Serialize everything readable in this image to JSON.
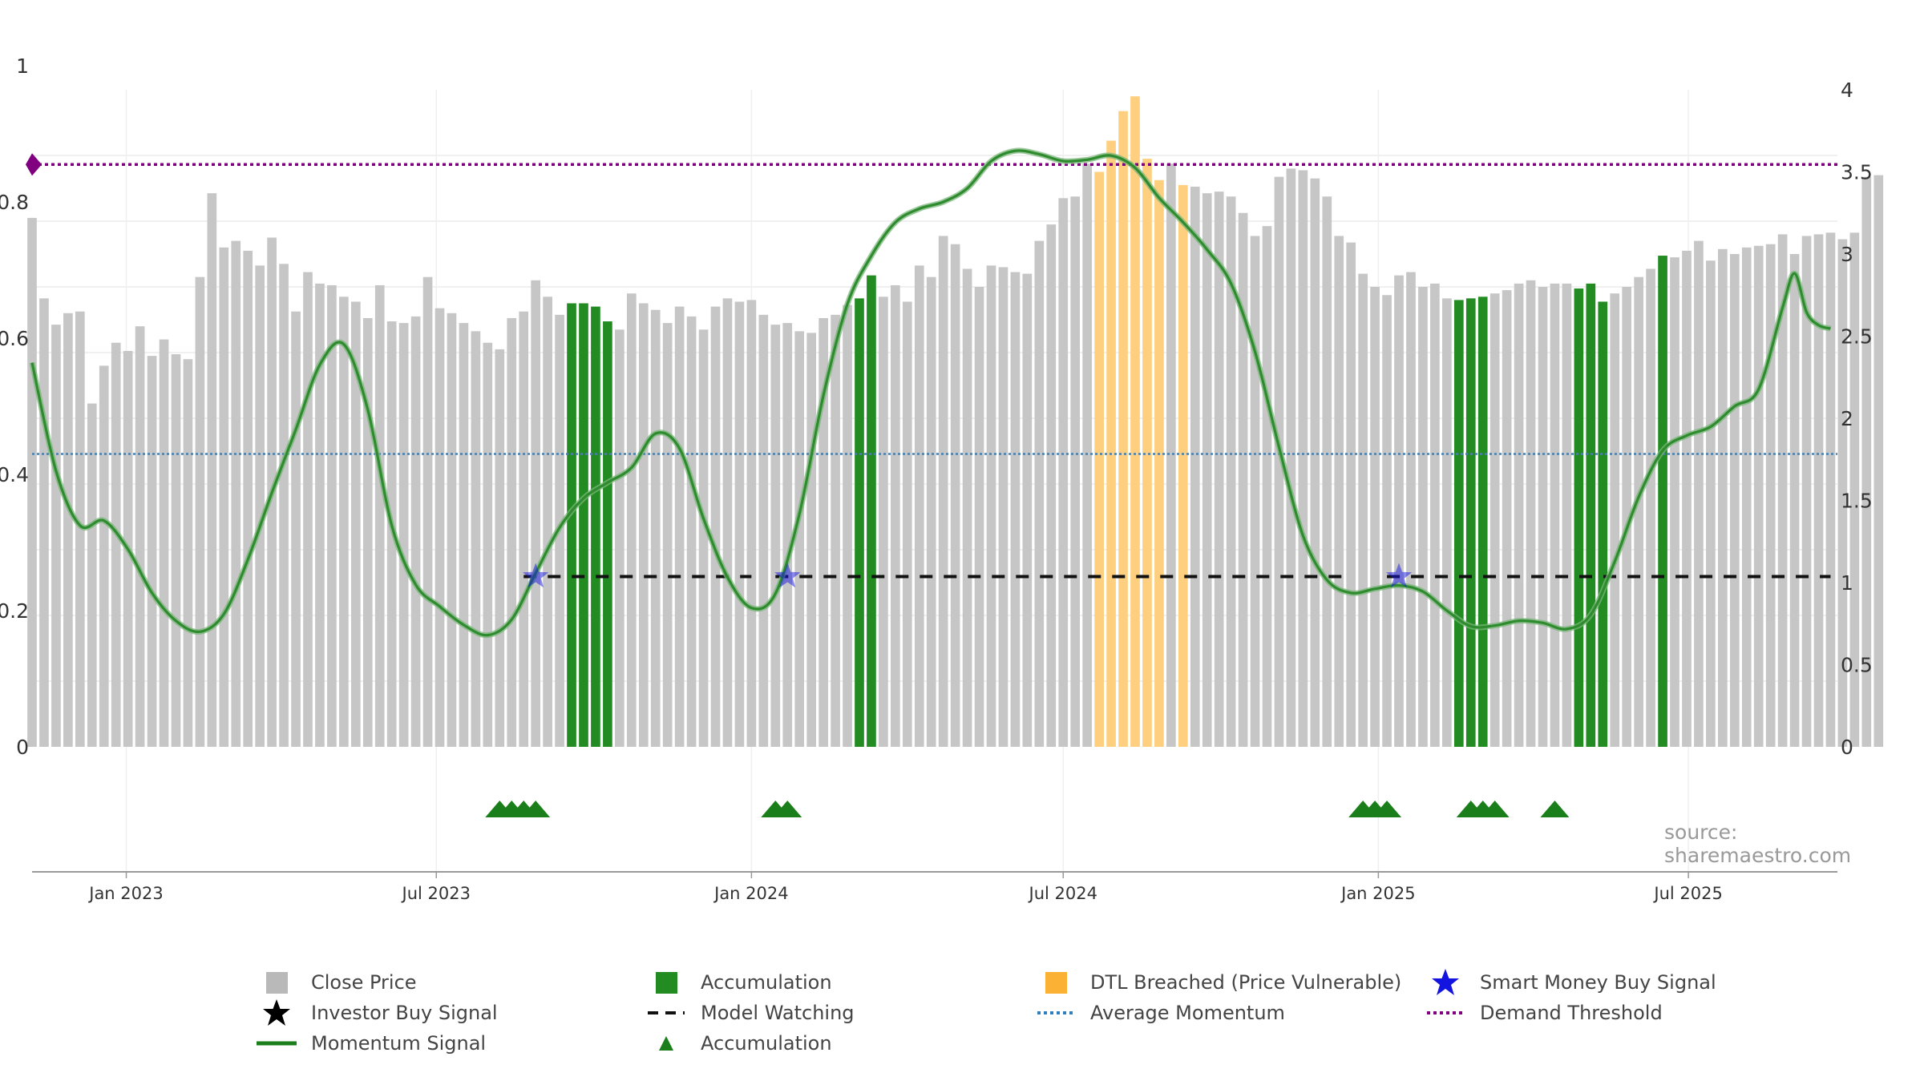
{
  "chart_data": {
    "type": "bar",
    "source_note": "source: sharemaestro.com",
    "x_ticks": [
      "Jan 2023",
      "Jul 2023",
      "Jan 2024",
      "Jul 2024",
      "Jan 2025",
      "Jul 2025"
    ],
    "left_axis": {
      "ticks": [
        "0",
        "0.2",
        "0.4",
        "0.6",
        "0.8",
        "1"
      ],
      "ylim": [
        0,
        1
      ]
    },
    "right_axis": {
      "ticks": [
        "0",
        "0.5",
        "1",
        "1.5",
        "2",
        "2.5",
        "3",
        "3.5",
        "4"
      ],
      "ylim": [
        0,
        4
      ]
    },
    "grid": true,
    "colors": {
      "close": "#c6c6c6",
      "accumulation": "#228b22",
      "dtl": "#fdcf7e",
      "momentum": "#2a8a2a",
      "smart_money": "#1414e0",
      "threshold": "#800080",
      "average": "#4a7fa8",
      "watching": "#111111"
    },
    "series": [
      {
        "name": "Close Price",
        "type": "bar",
        "axis": "right",
        "start": "2022-11-07",
        "interval_days": 7,
        "values": [
          3.22,
          2.73,
          2.57,
          2.64,
          2.65,
          2.09,
          2.32,
          2.46,
          2.41,
          2.56,
          2.38,
          2.48,
          2.39,
          2.36,
          2.86,
          3.37,
          3.04,
          3.08,
          3.02,
          2.93,
          3.1,
          2.94,
          2.65,
          2.89,
          2.82,
          2.81,
          2.74,
          2.71,
          2.61,
          2.81,
          2.59,
          2.58,
          2.62,
          2.86,
          2.67,
          2.64,
          2.58,
          2.53,
          2.46,
          2.42,
          2.61,
          2.65,
          2.84,
          2.74,
          2.63,
          2.7,
          2.7,
          2.68,
          2.59,
          2.54,
          2.76,
          2.7,
          2.66,
          2.58,
          2.68,
          2.62,
          2.54,
          2.68,
          2.73,
          2.71,
          2.72,
          2.63,
          2.57,
          2.58,
          2.53,
          2.52,
          2.61,
          2.63,
          2.69,
          2.73,
          2.87,
          2.74,
          2.81,
          2.71,
          2.93,
          2.86,
          3.11,
          3.06,
          2.91,
          2.8,
          2.93,
          2.92,
          2.89,
          2.88,
          3.08,
          3.18,
          3.34,
          3.35,
          3.55,
          3.5,
          3.69,
          3.87,
          3.96,
          3.58,
          3.45,
          3.55,
          3.42,
          3.41,
          3.37,
          3.38,
          3.35,
          3.25,
          3.11,
          3.17,
          3.47,
          3.52,
          3.51,
          3.46,
          3.35,
          3.11,
          3.07,
          2.88,
          2.8,
          2.75,
          2.87,
          2.89,
          2.8,
          2.82,
          2.73,
          2.72,
          2.73,
          2.74,
          2.76,
          2.78,
          2.82,
          2.84,
          2.8,
          2.82,
          2.82,
          2.79,
          2.82,
          2.71,
          2.76,
          2.8,
          2.86,
          2.91,
          2.99,
          2.98,
          3.02,
          3.08,
          2.96,
          3.03,
          3.0,
          3.04,
          3.05,
          3.06,
          3.12,
          3.0,
          3.11,
          3.12,
          3.13,
          3.09,
          3.13,
          3.47,
          3.48
        ],
        "accumulation_bars": [
          45,
          46,
          47,
          48,
          69,
          70,
          119,
          120,
          121,
          129,
          130,
          131,
          136
        ],
        "dtl_bars": [
          89,
          90,
          91,
          92,
          93,
          94,
          96
        ]
      },
      {
        "name": "Momentum Signal",
        "type": "line",
        "axis": "left",
        "points": [
          [
            "2022-11-07",
            0.564
          ],
          [
            "2022-11-21",
            0.405
          ],
          [
            "2022-12-05",
            0.325
          ],
          [
            "2022-12-19",
            0.332
          ],
          [
            "2023-01-02",
            0.29
          ],
          [
            "2023-01-16",
            0.226
          ],
          [
            "2023-01-30",
            0.185
          ],
          [
            "2023-02-13",
            0.169
          ],
          [
            "2023-02-27",
            0.195
          ],
          [
            "2023-03-13",
            0.275
          ],
          [
            "2023-03-27",
            0.373
          ],
          [
            "2023-04-10",
            0.466
          ],
          [
            "2023-04-24",
            0.561
          ],
          [
            "2023-05-08",
            0.591
          ],
          [
            "2023-05-22",
            0.495
          ],
          [
            "2023-06-05",
            0.325
          ],
          [
            "2023-06-19",
            0.238
          ],
          [
            "2023-07-03",
            0.206
          ],
          [
            "2023-07-17",
            0.179
          ],
          [
            "2023-07-31",
            0.164
          ],
          [
            "2023-08-14",
            0.187
          ],
          [
            "2023-08-28",
            0.255
          ],
          [
            "2023-09-11",
            0.322
          ],
          [
            "2023-09-25",
            0.365
          ],
          [
            "2023-10-09",
            0.388
          ],
          [
            "2023-10-23",
            0.41
          ],
          [
            "2023-11-06",
            0.46
          ],
          [
            "2023-11-20",
            0.438
          ],
          [
            "2023-12-04",
            0.335
          ],
          [
            "2023-12-18",
            0.249
          ],
          [
            "2024-01-01",
            0.204
          ],
          [
            "2024-01-15",
            0.225
          ],
          [
            "2024-01-29",
            0.342
          ],
          [
            "2024-02-12",
            0.516
          ],
          [
            "2024-02-26",
            0.65
          ],
          [
            "2024-03-11",
            0.721
          ],
          [
            "2024-03-25",
            0.77
          ],
          [
            "2024-04-08",
            0.79
          ],
          [
            "2024-04-22",
            0.8
          ],
          [
            "2024-05-06",
            0.82
          ],
          [
            "2024-05-20",
            0.86
          ],
          [
            "2024-06-03",
            0.875
          ],
          [
            "2024-06-17",
            0.87
          ],
          [
            "2024-07-01",
            0.86
          ],
          [
            "2024-07-15",
            0.862
          ],
          [
            "2024-07-29",
            0.868
          ],
          [
            "2024-08-12",
            0.85
          ],
          [
            "2024-08-26",
            0.806
          ],
          [
            "2024-09-09",
            0.77
          ],
          [
            "2024-09-23",
            0.73
          ],
          [
            "2024-10-07",
            0.68
          ],
          [
            "2024-10-21",
            0.58
          ],
          [
            "2024-11-04",
            0.44
          ],
          [
            "2024-11-18",
            0.31
          ],
          [
            "2024-12-02",
            0.245
          ],
          [
            "2024-12-16",
            0.226
          ],
          [
            "2024-12-30",
            0.232
          ],
          [
            "2025-01-13",
            0.237
          ],
          [
            "2025-01-27",
            0.228
          ],
          [
            "2025-02-10",
            0.2
          ],
          [
            "2025-02-24",
            0.177
          ],
          [
            "2025-03-10",
            0.178
          ],
          [
            "2025-03-24",
            0.185
          ],
          [
            "2025-04-07",
            0.182
          ],
          [
            "2025-04-21",
            0.173
          ],
          [
            "2025-05-05",
            0.194
          ],
          [
            "2025-05-19",
            0.272
          ],
          [
            "2025-06-02",
            0.367
          ],
          [
            "2025-06-16",
            0.435
          ],
          [
            "2025-06-30",
            0.457
          ],
          [
            "2025-07-14",
            0.47
          ],
          [
            "2025-07-28",
            0.5
          ],
          [
            "2025-08-11",
            0.525
          ],
          [
            "2025-08-25",
            0.645
          ],
          [
            "2025-09-01",
            0.695
          ],
          [
            "2025-09-08",
            0.638
          ],
          [
            "2025-09-15",
            0.619
          ],
          [
            "2025-09-22",
            0.614
          ]
        ]
      },
      {
        "name": "Average Momentum",
        "type": "hline",
        "axis": "left",
        "value": 0.43
      },
      {
        "name": "Demand Threshold",
        "type": "hline",
        "axis": "left",
        "value": 0.855
      },
      {
        "name": "Model Watching",
        "type": "dashed-line",
        "axis": "left",
        "value": 0.25,
        "segments": [
          [
            "2023-08-21",
            "2024-01-01"
          ],
          [
            "2024-01-15",
            "2024-12-16"
          ],
          [
            "2025-01-06",
            "2025-09-22"
          ]
        ]
      },
      {
        "name": "Smart Money Buy Signal",
        "type": "marker",
        "axis": "left",
        "points": [
          [
            "2023-08-28",
            0.25
          ],
          [
            "2024-01-22",
            0.25
          ],
          [
            "2025-01-13",
            0.25
          ]
        ]
      },
      {
        "name": "Investor Buy Signal",
        "type": "marker",
        "points": []
      },
      {
        "name": "Accumulation",
        "type": "triangle-marker",
        "dates": [
          "2023-08-07",
          "2023-08-14",
          "2023-08-21",
          "2023-08-28",
          "2024-01-15",
          "2024-01-22",
          "2024-12-23",
          "2024-12-30",
          "2025-01-06",
          "2025-02-24",
          "2025-03-03",
          "2025-03-10",
          "2025-04-14"
        ]
      }
    ],
    "legend": {
      "placement": "bottom",
      "items": [
        {
          "label": "Close Price",
          "symbol": "grey-square"
        },
        {
          "label": "Accumulation",
          "symbol": "green-square"
        },
        {
          "label": "DTL Breached (Price Vulnerable)",
          "symbol": "orange-square"
        },
        {
          "label": "Smart Money Buy Signal",
          "symbol": "blue-star"
        },
        {
          "label": "Investor Buy Signal",
          "symbol": "black-star"
        },
        {
          "label": "Model Watching",
          "symbol": "black-dash"
        },
        {
          "label": "Average Momentum",
          "symbol": "blue-dot-line"
        },
        {
          "label": "Demand Threshold",
          "symbol": "purple-dot-line"
        },
        {
          "label": "Momentum Signal",
          "symbol": "green-line"
        },
        {
          "label": "Accumulation",
          "symbol": "green-triangle"
        }
      ]
    }
  }
}
